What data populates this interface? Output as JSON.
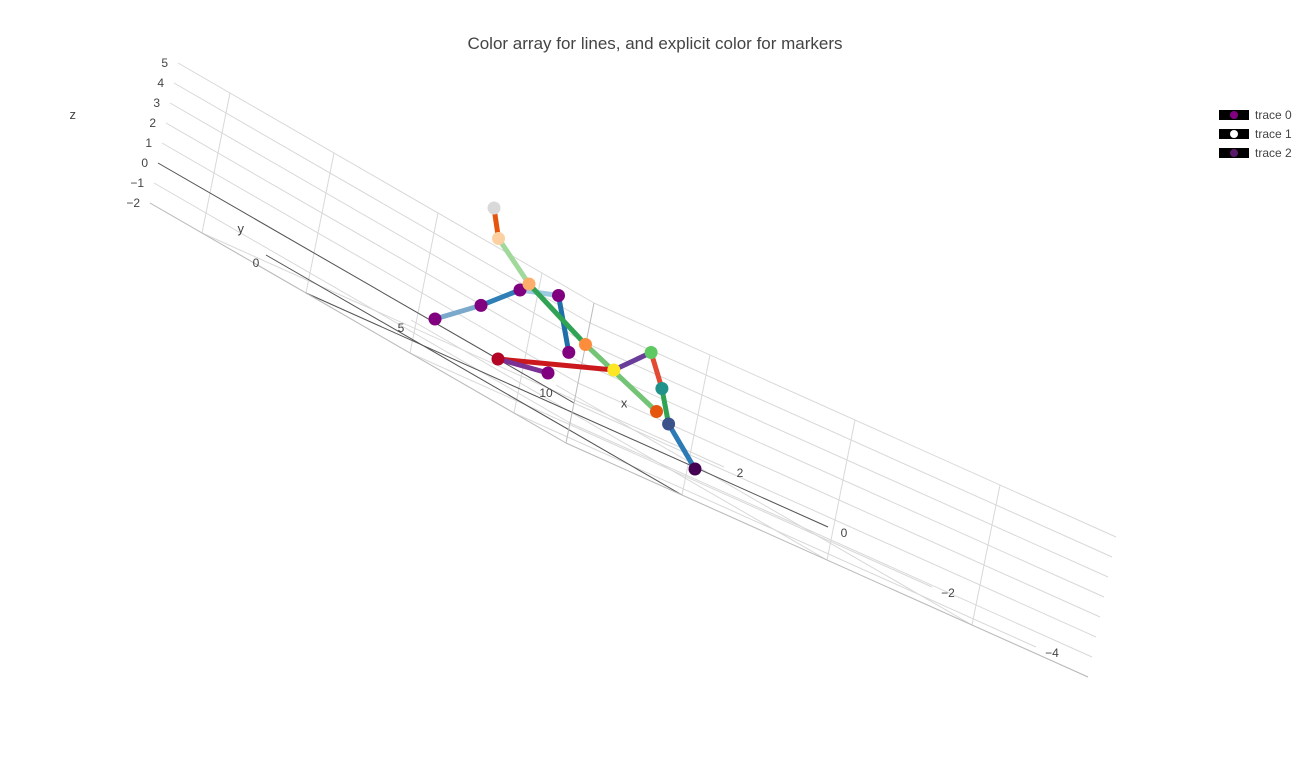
{
  "title": "Color array for lines, and explicit color for markers",
  "legend": [
    {
      "name": "trace 0",
      "color": "#800080"
    },
    {
      "name": "trace 1",
      "color": "#ffffff"
    },
    {
      "name": "trace 2",
      "color": "#5a1a6a"
    }
  ],
  "chart_data": {
    "type": "scatter3d",
    "title": "Color array for lines, and explicit color for markers",
    "axes": {
      "x": {
        "title": "x",
        "range": [
          -5,
          3
        ],
        "ticks": [
          -4,
          -2,
          0,
          2
        ]
      },
      "y": {
        "title": "y",
        "range": [
          -4,
          14
        ],
        "ticks": [
          0,
          5,
          10
        ]
      },
      "z": {
        "title": "z",
        "range": [
          -2,
          5
        ],
        "ticks": [
          -2,
          -1,
          0,
          1,
          2,
          3,
          4,
          5
        ]
      }
    },
    "grid": true,
    "legend_position": "top-right",
    "series": [
      {
        "name": "trace 0",
        "marker_color": "#800080",
        "x": [
          -4.3,
          -3.0,
          -1.5,
          0.1,
          1.5
        ],
        "y": [
          -3.2,
          -1.5,
          0.0,
          1.8,
          3.0
        ],
        "z": [
          2,
          4,
          3,
          1,
          -1
        ],
        "line_colors": [
          "#1f6fa8",
          "#9ecae1",
          "#2f7fb6",
          "#7ba9cc"
        ]
      },
      {
        "name": "trace 1",
        "marker_colors": [
          "#e6550d",
          "#fd8d3c",
          "#fdae6b",
          "#fdd0a2",
          "#d9d9d9"
        ],
        "x": [
          -4.0,
          -2.0,
          0.0,
          1.5,
          2.5
        ],
        "y": [
          0.5,
          1.5,
          3.0,
          4.5,
          6.0
        ],
        "z": [
          1,
          2,
          3,
          4,
          5
        ],
        "line_colors": [
          "#74c476",
          "#31a354",
          "#a1d99b",
          "#e6550d"
        ]
      },
      {
        "name": "trace 2",
        "marker_colors": [
          "#440154",
          "#3b528b",
          "#21918c",
          "#5ec962",
          "#fde725",
          "#b40426",
          "#800080"
        ],
        "x": [
          -3.5,
          -1.8,
          -0.2,
          1.2,
          2.6,
          3.0,
          1.0
        ],
        "y": [
          3.0,
          5.0,
          7.5,
          9.5,
          11.0,
          8.0,
          6.0
        ],
        "z": [
          -1,
          0,
          1,
          2,
          0,
          -2,
          -1
        ],
        "line_colors": [
          "#2c7bb6",
          "#31a354",
          "#e34a33",
          "#6a3d9a",
          "#cb181d",
          "#7b3294"
        ]
      }
    ]
  }
}
